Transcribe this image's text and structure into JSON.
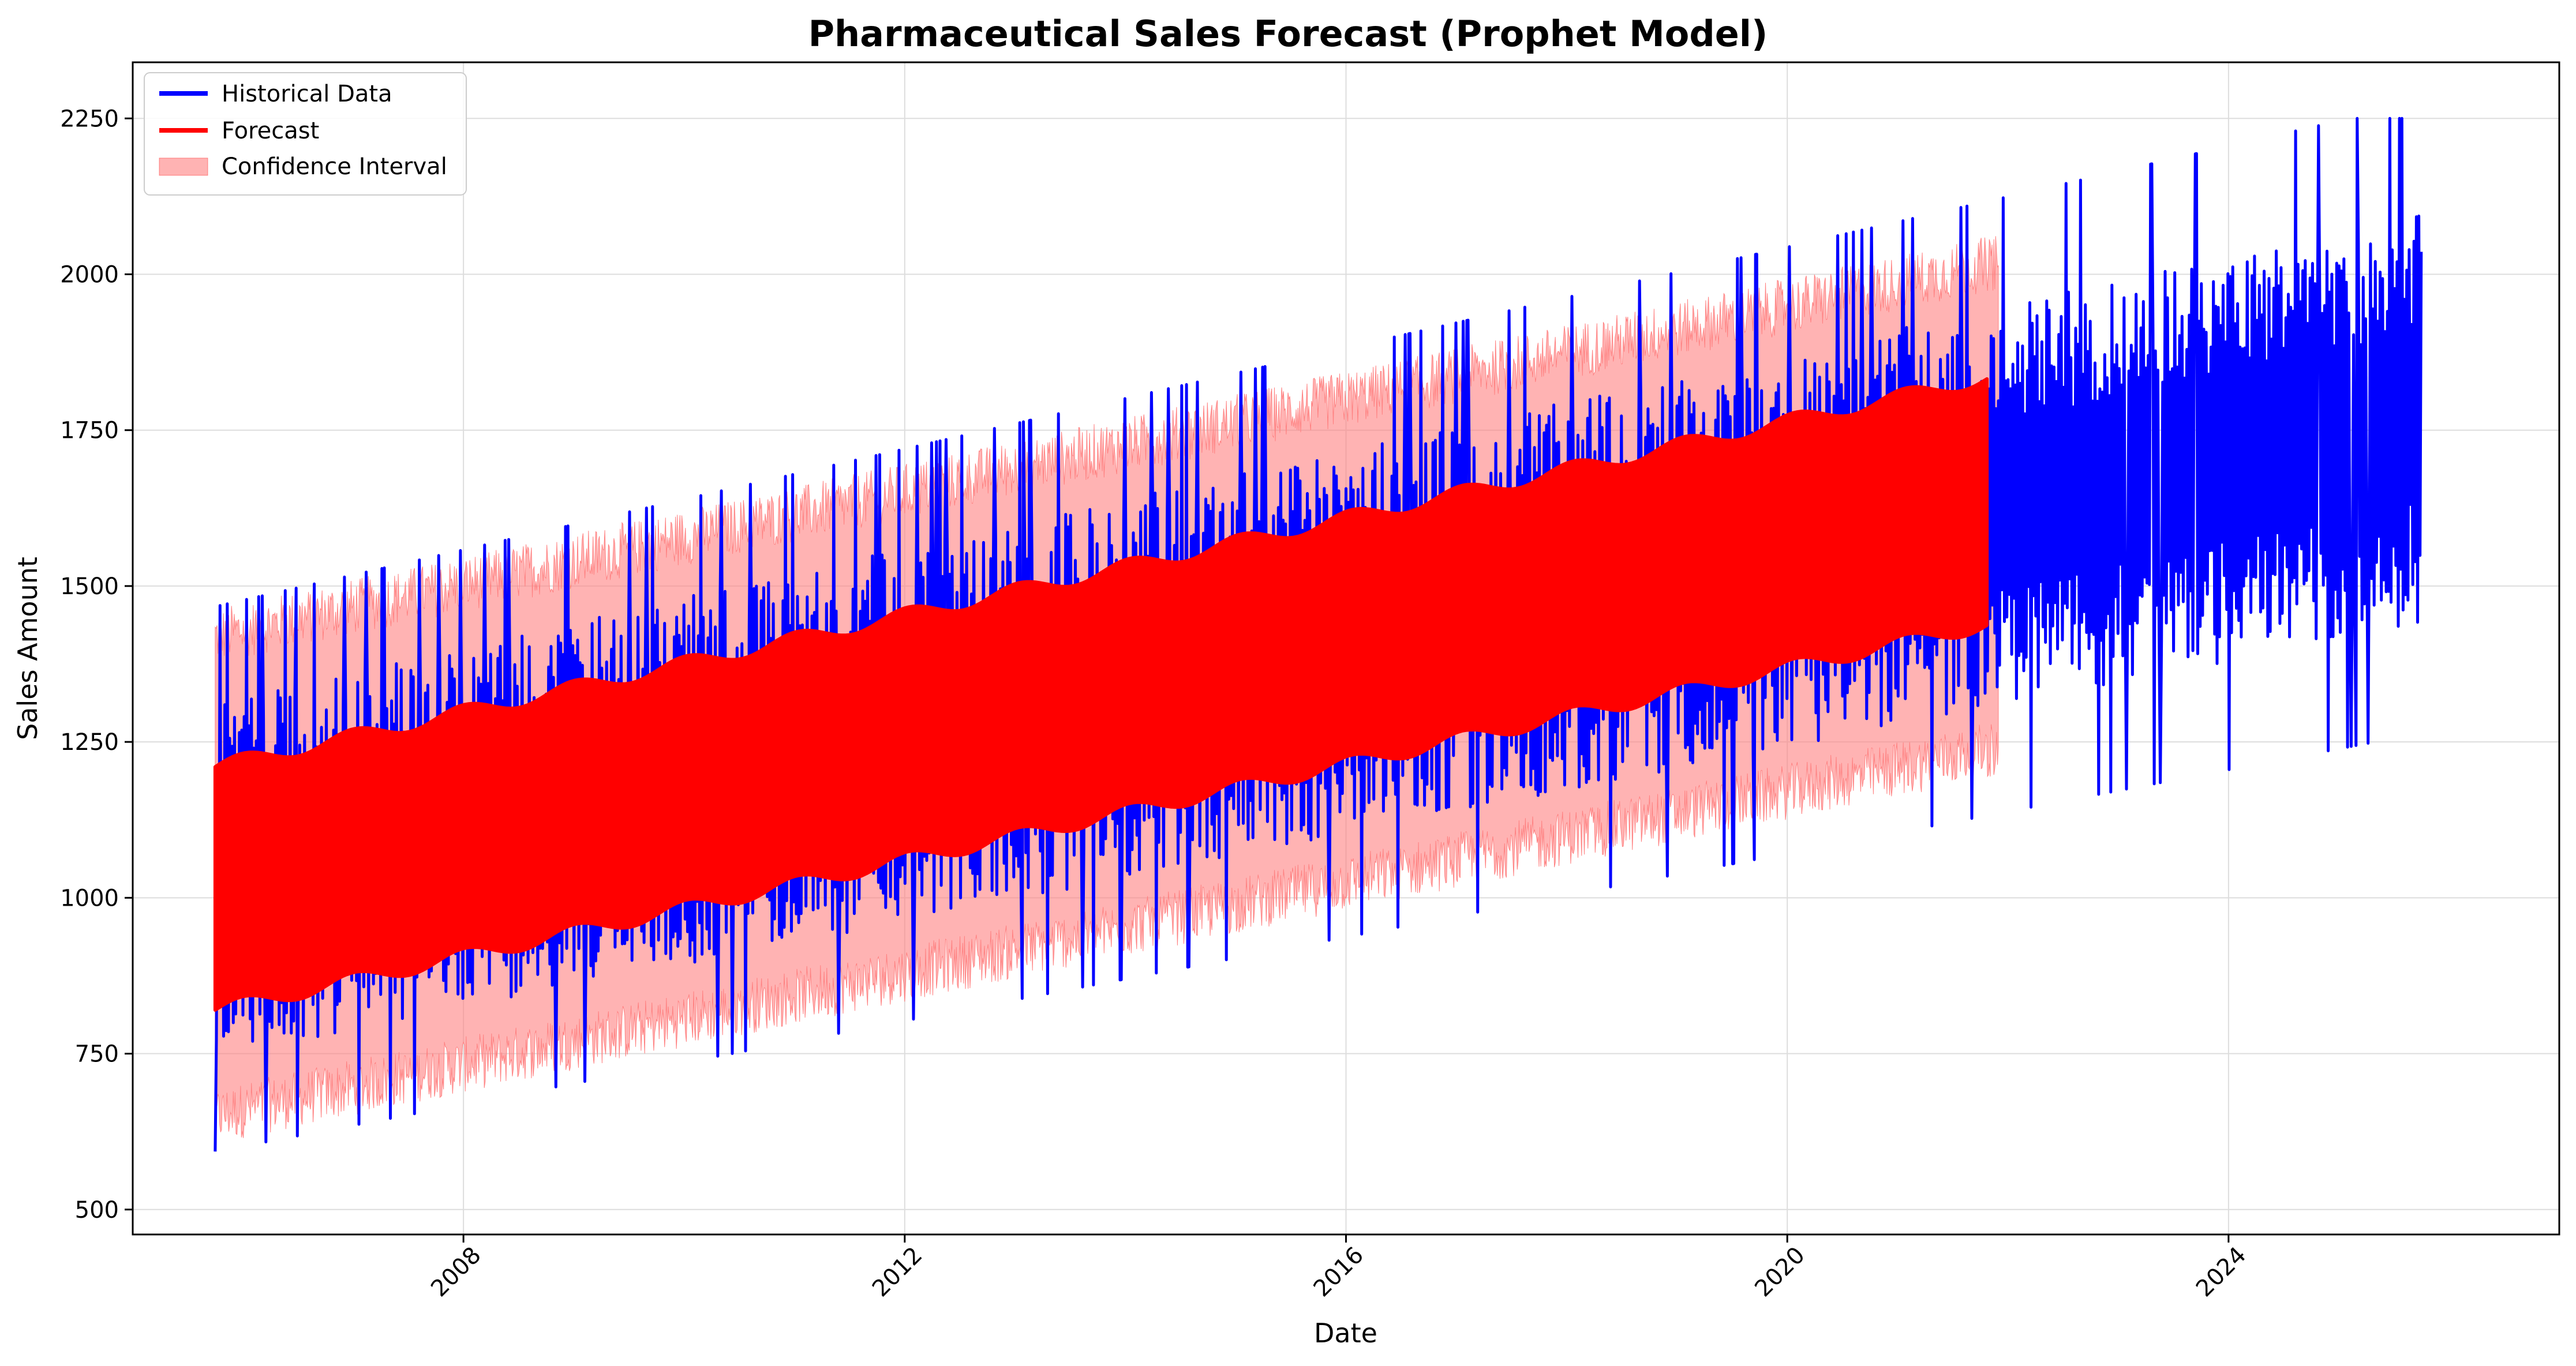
{
  "chart_data": {
    "type": "line",
    "title": "Pharmaceutical Sales Forecast (Prophet Model)",
    "xlabel": "Date",
    "ylabel": "Sales Amount",
    "xlim": [
      "2005-01-01",
      "2026-12-31"
    ],
    "ylim": [
      460,
      2340
    ],
    "x_ticks": [
      "2008",
      "2012",
      "2016",
      "2020",
      "2024"
    ],
    "y_ticks": [
      500,
      750,
      1000,
      1250,
      1500,
      1750,
      2000,
      2250
    ],
    "grid": true,
    "legend_placement": "top-left",
    "colors": {
      "historical": "#0000ff",
      "forecast": "#ff0000",
      "confidence": "#ff8080"
    },
    "series": [
      {
        "name": "Historical Data",
        "kind": "line",
        "start": "2005-10-01",
        "end": "2025-09-30",
        "center_start": 1030,
        "center_end": 1770,
        "amplitude_start": 190,
        "amplitude_end": 220,
        "min_value": 550,
        "max_value": 2250,
        "frequency": "daily"
      },
      {
        "name": "Forecast",
        "kind": "band",
        "start": "2005-10-01",
        "end": "2021-11-01",
        "upper_start": 1210,
        "upper_end": 1835,
        "lower_start": 820,
        "lower_end": 1440
      },
      {
        "name": "Confidence Interval",
        "kind": "band",
        "start": "2005-10-01",
        "end": "2021-12-01",
        "upper_start": 1420,
        "upper_end": 2020,
        "lower_start": 650,
        "lower_end": 1240
      }
    ]
  }
}
